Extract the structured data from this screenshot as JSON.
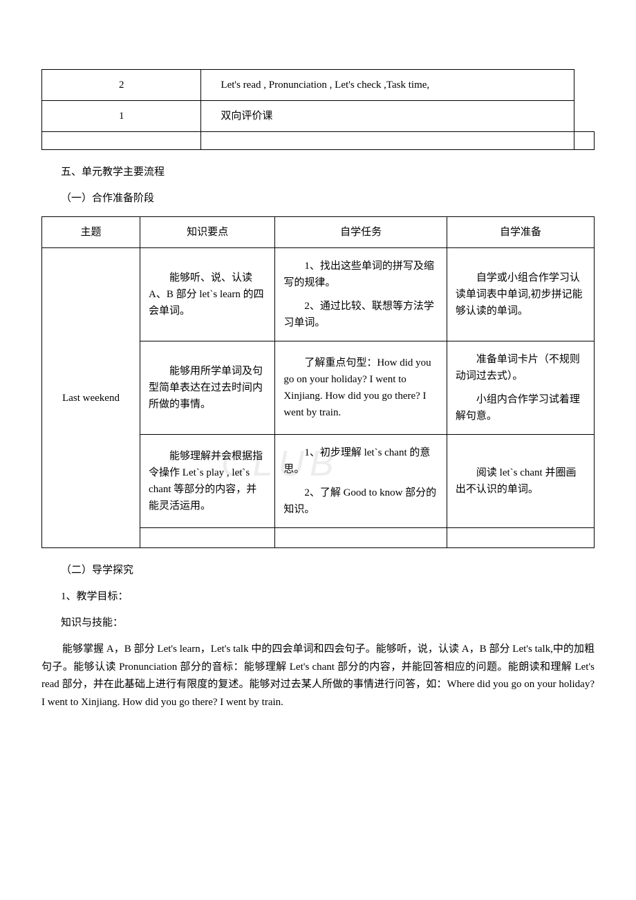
{
  "table1": {
    "rows": [
      {
        "col1": "2",
        "col2": "Let's  read , Pronunciation , Let's check ,Task time,",
        "split": false
      },
      {
        "col1": "1",
        "col2": "双向评价课",
        "split": false
      },
      {
        "col1": "",
        "col2": "",
        "col3": "",
        "split": true
      }
    ]
  },
  "headings": {
    "section5": "五、单元教学主要流程",
    "sub1": "（一）合作准备阶段",
    "sub2": "（二）导学探究",
    "goal_num": "1、教学目标：",
    "knowledge_skill": "知识与技能："
  },
  "table2": {
    "headers": [
      "主题",
      "知识要点",
      "自学任务",
      "自学准备"
    ],
    "topic": "Last weekend",
    "rows": [
      {
        "knowledge": "能够听、说、认读 A、B 部分 let`s learn 的四会单词。",
        "task_p1": "1、找出这些单词的拼写及缩写的规律。",
        "task_p2": "2、通过比较、联想等方法学习单词。",
        "prep": "自学或小组合作学习认读单词表中单词,初步拼记能够认读的单词。"
      },
      {
        "knowledge": "能够用所学单词及句型简单表达在过去时间内所做的事情。",
        "task": "了解重点句型：How did you go on your holiday? I went to Xinjiang. How did you go there? I went by train.",
        "prep_p1": "准备单词卡片（不规则动词过去式）。",
        "prep_p2": "小组内合作学习试着理解句意。"
      },
      {
        "knowledge": "能够理解并会根据指令操作 Let`s play , let`s chant 等部分的内容，并能灵活运用。",
        "task_p1": "1、初步理解 let`s chant 的意思。",
        "task_p2": "2、了解 Good to know 部分的知识。",
        "prep": "阅读 let`s chant 并圈画出不认识的单词。"
      }
    ]
  },
  "paragraph": "能够掌握 A，B 部分 Let's learn，Let's talk 中的四会单词和四会句子。能够听，说，认读 A，B 部分 Let's talk,中的加粗句子。能够认读 Pronunciation 部分的音标：能够理解 Let's chant 部分的内容，并能回答相应的问题。能朗读和理解 Let's read 部分，并在此基础上进行有限度的复述。能够对过去某人所做的事情进行问答，如：Where did you go on your holiday? I went to Xinjiang. How did you go there? I went by train.",
  "watermark": "CLUB"
}
